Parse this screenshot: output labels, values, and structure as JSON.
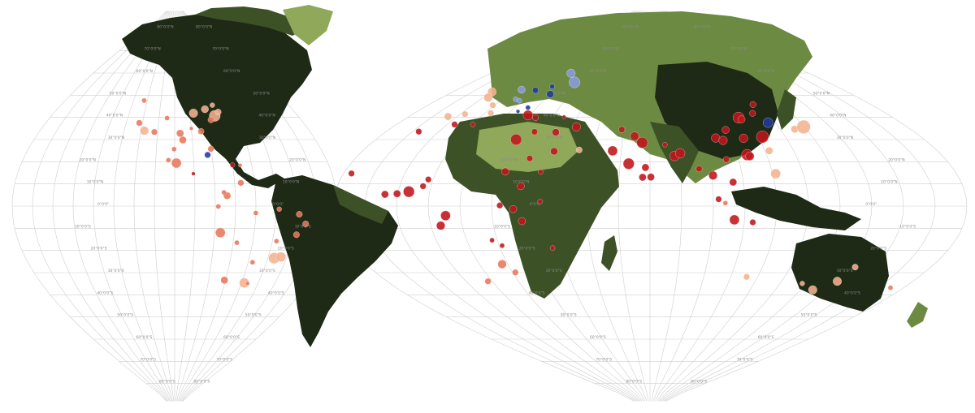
{
  "map": {
    "lat_labels": [
      "80°0'0\"N",
      "70°0'0\"N",
      "60°0'0\"N",
      "50°0'0\"N",
      "40°0'0\"N",
      "30°0'0\"N",
      "20°0'0\"N",
      "10°0'0\"N",
      "0°0'0\"",
      "10°0'0\"S",
      "20°0'0\"S",
      "30°0'0\"S",
      "40°0'0\"S",
      "50°0'0\"S",
      "60°0'0\"S",
      "70°0'0\"S",
      "80°0'0\"S"
    ]
  },
  "legend_colors": {
    "land_dark": "#1f2a16",
    "land_mid": "#3d5127",
    "land_light": "#6d8a42",
    "land_pale": "#8fa85a",
    "city_red": "#c0141a",
    "city_salmon": "#e8765a",
    "city_peach": "#f4b28f",
    "city_blue": "#1f3a9c",
    "city_lightblue": "#8a9be0"
  },
  "cities": [
    {
      "lon": -118,
      "lat": 34,
      "size": 7,
      "tone": "peach"
    },
    {
      "lon": -122,
      "lat": 37.5,
      "size": 5,
      "tone": "salmon"
    },
    {
      "lon": -122.3,
      "lat": 47.6,
      "size": 4,
      "tone": "salmon"
    },
    {
      "lon": -112,
      "lat": 33.4,
      "size": 5,
      "tone": "salmon"
    },
    {
      "lon": -104.9,
      "lat": 39.7,
      "size": 4,
      "tone": "salmon"
    },
    {
      "lon": -96.8,
      "lat": 32.8,
      "size": 6,
      "tone": "salmon"
    },
    {
      "lon": -95.4,
      "lat": 29.8,
      "size": 6,
      "tone": "salmon"
    },
    {
      "lon": -87.6,
      "lat": 41.9,
      "size": 7,
      "tone": "peach"
    },
    {
      "lon": -74,
      "lat": 40.7,
      "size": 9,
      "tone": "peach"
    },
    {
      "lon": -71,
      "lat": 42.4,
      "size": 5,
      "tone": "peach"
    },
    {
      "lon": -77,
      "lat": 38.9,
      "size": 5,
      "tone": "salmon"
    },
    {
      "lon": -84.4,
      "lat": 33.7,
      "size": 5,
      "tone": "salmon"
    },
    {
      "lon": -80.2,
      "lat": 25.8,
      "size": 5,
      "tone": "salmon"
    },
    {
      "lon": -79.4,
      "lat": 43.7,
      "size": 6,
      "tone": "peach"
    },
    {
      "lon": -73.6,
      "lat": 45.5,
      "size": 4,
      "tone": "peach"
    },
    {
      "lon": -90,
      "lat": 35,
      "size": 3,
      "tone": "salmon"
    },
    {
      "lon": -100.3,
      "lat": 25.7,
      "size": 4,
      "tone": "salmon"
    },
    {
      "lon": -99.1,
      "lat": 19.4,
      "size": 8,
      "tone": "salmon"
    },
    {
      "lon": -103.3,
      "lat": 20.7,
      "size": 4,
      "tone": "salmon"
    },
    {
      "lon": -90.5,
      "lat": 14.6,
      "size": 3,
      "tone": "red"
    },
    {
      "lon": -82.4,
      "lat": 23.1,
      "size": 5,
      "tone": "blue"
    },
    {
      "lon": -70,
      "lat": 18.5,
      "size": 4,
      "tone": "red"
    },
    {
      "lon": -66,
      "lat": 18.4,
      "size": 3,
      "tone": "salmon"
    },
    {
      "lon": -74.1,
      "lat": 4.7,
      "size": 6,
      "tone": "salmon"
    },
    {
      "lon": -75.6,
      "lat": 6.2,
      "size": 4,
      "tone": "salmon"
    },
    {
      "lon": -66.9,
      "lat": 10.5,
      "size": 5,
      "tone": "salmon"
    },
    {
      "lon": -78.5,
      "lat": -0.2,
      "size": 4,
      "tone": "salmon"
    },
    {
      "lon": -77,
      "lat": -12,
      "size": 8,
      "tone": "salmon"
    },
    {
      "lon": -68.1,
      "lat": -16.5,
      "size": 4,
      "tone": "salmon"
    },
    {
      "lon": -70.7,
      "lat": -33.4,
      "size": 6,
      "tone": "salmon"
    },
    {
      "lon": -58.4,
      "lat": -34.6,
      "size": 8,
      "tone": "peach"
    },
    {
      "lon": -56.2,
      "lat": -34.9,
      "size": 3,
      "tone": "salmon"
    },
    {
      "lon": -57.6,
      "lat": -25.3,
      "size": 4,
      "tone": "salmon"
    },
    {
      "lon": -46.6,
      "lat": -23.5,
      "size": 9,
      "tone": "peach"
    },
    {
      "lon": -43.2,
      "lat": -22.9,
      "size": 8,
      "tone": "peach"
    },
    {
      "lon": -47.9,
      "lat": -15.8,
      "size": 4,
      "tone": "salmon"
    },
    {
      "lon": -38.5,
      "lat": -12.9,
      "size": 5,
      "tone": "salmon"
    },
    {
      "lon": -34.9,
      "lat": -8,
      "size": 5,
      "tone": "salmon"
    },
    {
      "lon": -38.5,
      "lat": -3.7,
      "size": 5,
      "tone": "salmon"
    },
    {
      "lon": -48.5,
      "lat": -1.4,
      "size": 4,
      "tone": "salmon"
    },
    {
      "lon": -60,
      "lat": -3.1,
      "size": 4,
      "tone": "salmon"
    },
    {
      "lon": -0.1,
      "lat": 51.5,
      "size": 7,
      "tone": "peach"
    },
    {
      "lon": 2.35,
      "lat": 48.9,
      "size": 7,
      "tone": "peach"
    },
    {
      "lon": -3.7,
      "lat": 40.4,
      "size": 6,
      "tone": "peach"
    },
    {
      "lon": 2.2,
      "lat": 41.4,
      "size": 5,
      "tone": "peach"
    },
    {
      "lon": 12.5,
      "lat": 41.9,
      "size": 5,
      "tone": "peach"
    },
    {
      "lon": 9.2,
      "lat": 45.5,
      "size": 5,
      "tone": "peach"
    },
    {
      "lon": 13.4,
      "lat": 52.5,
      "size": 6,
      "tone": "lightblue"
    },
    {
      "lon": 16.4,
      "lat": 48.2,
      "size": 4,
      "tone": "lightblue"
    },
    {
      "lon": 21,
      "lat": 52.2,
      "size": 5,
      "tone": "blue"
    },
    {
      "lon": 30.5,
      "lat": 50.5,
      "size": 6,
      "tone": "blue"
    },
    {
      "lon": 37.6,
      "lat": 55.8,
      "size": 9,
      "tone": "lightblue"
    },
    {
      "lon": 30.3,
      "lat": 59.9,
      "size": 7,
      "tone": "lightblue"
    },
    {
      "lon": 27.6,
      "lat": 53.9,
      "size": 4,
      "tone": "blue"
    },
    {
      "lon": 26.1,
      "lat": 44.4,
      "size": 4,
      "tone": "blue"
    },
    {
      "lon": 23.3,
      "lat": 42.7,
      "size": 3,
      "tone": "blue"
    },
    {
      "lon": 19,
      "lat": 47.5,
      "size": 4,
      "tone": "lightblue"
    },
    {
      "lon": 28.98,
      "lat": 41,
      "size": 8,
      "tone": "red"
    },
    {
      "lon": 32.9,
      "lat": 39.9,
      "size": 5,
      "tone": "red"
    },
    {
      "lon": 44.5,
      "lat": 40.2,
      "size": 3,
      "tone": "red"
    },
    {
      "lon": 51.4,
      "lat": 35.7,
      "size": 7,
      "tone": "red"
    },
    {
      "lon": 44.4,
      "lat": 33.3,
      "size": 6,
      "tone": "red"
    },
    {
      "lon": 36.3,
      "lat": 33.5,
      "size": 5,
      "tone": "red"
    },
    {
      "lon": 31.2,
      "lat": 30,
      "size": 9,
      "tone": "red"
    },
    {
      "lon": 46.7,
      "lat": 24.7,
      "size": 6,
      "tone": "red"
    },
    {
      "lon": 39.2,
      "lat": 21.5,
      "size": 5,
      "tone": "red"
    },
    {
      "lon": 55.3,
      "lat": 25.3,
      "size": 5,
      "tone": "peach"
    },
    {
      "lon": 44.2,
      "lat": 15.4,
      "size": 4,
      "tone": "red"
    },
    {
      "lon": 69.2,
      "lat": 34.5,
      "size": 5,
      "tone": "red"
    },
    {
      "lon": 67,
      "lat": 24.9,
      "size": 8,
      "tone": "red"
    },
    {
      "lon": 74.3,
      "lat": 31.5,
      "size": 7,
      "tone": "red"
    },
    {
      "lon": 77.2,
      "lat": 28.6,
      "size": 9,
      "tone": "red"
    },
    {
      "lon": 72.9,
      "lat": 19.1,
      "size": 9,
      "tone": "red"
    },
    {
      "lon": 88.4,
      "lat": 22.6,
      "size": 8,
      "tone": "red"
    },
    {
      "lon": 80.3,
      "lat": 13.1,
      "size": 6,
      "tone": "red"
    },
    {
      "lon": 77.6,
      "lat": 13,
      "size": 6,
      "tone": "red"
    },
    {
      "lon": 78.5,
      "lat": 17.4,
      "size": 6,
      "tone": "red"
    },
    {
      "lon": 90.4,
      "lat": 23.8,
      "size": 8,
      "tone": "red"
    },
    {
      "lon": 85.3,
      "lat": 27.7,
      "size": 4,
      "tone": "red"
    },
    {
      "lon": 96.2,
      "lat": 16.8,
      "size": 5,
      "tone": "red"
    },
    {
      "lon": 100.5,
      "lat": 13.8,
      "size": 7,
      "tone": "red"
    },
    {
      "lon": 106.7,
      "lat": 10.8,
      "size": 6,
      "tone": "red"
    },
    {
      "lon": 105.8,
      "lat": 21,
      "size": 5,
      "tone": "red"
    },
    {
      "lon": 116.4,
      "lat": 39.9,
      "size": 9,
      "tone": "red"
    },
    {
      "lon": 121.5,
      "lat": 31.2,
      "size": 10,
      "tone": "red"
    },
    {
      "lon": 113.3,
      "lat": 23.1,
      "size": 9,
      "tone": "red"
    },
    {
      "lon": 114.1,
      "lat": 22.5,
      "size": 7,
      "tone": "red"
    },
    {
      "lon": 104.1,
      "lat": 30.7,
      "size": 7,
      "tone": "red"
    },
    {
      "lon": 106.5,
      "lat": 29.6,
      "size": 7,
      "tone": "red"
    },
    {
      "lon": 114.3,
      "lat": 30.6,
      "size": 7,
      "tone": "red"
    },
    {
      "lon": 117.2,
      "lat": 39.1,
      "size": 6,
      "tone": "red"
    },
    {
      "lon": 108.9,
      "lat": 34.3,
      "size": 6,
      "tone": "red"
    },
    {
      "lon": 123.4,
      "lat": 41.8,
      "size": 5,
      "tone": "red"
    },
    {
      "lon": 126.6,
      "lat": 45.8,
      "size": 5,
      "tone": "red"
    },
    {
      "lon": 126.98,
      "lat": 37.6,
      "size": 8,
      "tone": "blue"
    },
    {
      "lon": 135.5,
      "lat": 34.7,
      "size": 6,
      "tone": "peach"
    },
    {
      "lon": 139.7,
      "lat": 35.7,
      "size": 11,
      "tone": "peach"
    },
    {
      "lon": 121.5,
      "lat": 25,
      "size": 6,
      "tone": "peach"
    },
    {
      "lon": 121,
      "lat": 14.6,
      "size": 8,
      "tone": "peach"
    },
    {
      "lon": 101.7,
      "lat": 3.1,
      "size": 5,
      "tone": "red"
    },
    {
      "lon": 103.8,
      "lat": 1.35,
      "size": 4,
      "tone": "salmon"
    },
    {
      "lon": 106.8,
      "lat": -6.2,
      "size": 8,
      "tone": "red"
    },
    {
      "lon": 112.7,
      "lat": -7.3,
      "size": 5,
      "tone": "red"
    },
    {
      "lon": 151.2,
      "lat": -33.9,
      "size": 7,
      "tone": "peach"
    },
    {
      "lon": 145,
      "lat": -37.8,
      "size": 7,
      "tone": "peach"
    },
    {
      "lon": 153,
      "lat": -27.5,
      "size": 5,
      "tone": "peach"
    },
    {
      "lon": 115.9,
      "lat": -31.9,
      "size": 5,
      "tone": "peach"
    },
    {
      "lon": 138.6,
      "lat": -34.9,
      "size": 4,
      "tone": "peach"
    },
    {
      "lon": 174.8,
      "lat": -36.8,
      "size": 4,
      "tone": "salmon"
    },
    {
      "lon": 3.4,
      "lat": 6.5,
      "size": 9,
      "tone": "red"
    },
    {
      "lon": -0.2,
      "lat": 5.6,
      "size": 6,
      "tone": "red"
    },
    {
      "lon": -4,
      "lat": 5.3,
      "size": 6,
      "tone": "red"
    },
    {
      "lon": -17.4,
      "lat": 14.7,
      "size": 5,
      "tone": "red"
    },
    {
      "lon": -7.6,
      "lat": 33.6,
      "size": 5,
      "tone": "red"
    },
    {
      "lon": 3,
      "lat": 36.8,
      "size": 5,
      "tone": "red"
    },
    {
      "lon": 10.2,
      "lat": 36.8,
      "size": 4,
      "tone": "red"
    },
    {
      "lon": 7.5,
      "lat": 9,
      "size": 5,
      "tone": "red"
    },
    {
      "lon": 8.5,
      "lat": 12,
      "size": 5,
      "tone": "red"
    },
    {
      "lon": 15.3,
      "lat": -4.3,
      "size": 8,
      "tone": "red"
    },
    {
      "lon": 13.2,
      "lat": -8.8,
      "size": 7,
      "tone": "red"
    },
    {
      "lon": 32.6,
      "lat": 15.6,
      "size": 6,
      "tone": "red"
    },
    {
      "lon": 38.7,
      "lat": 9,
      "size": 6,
      "tone": "red"
    },
    {
      "lon": 36.8,
      "lat": -1.3,
      "size": 6,
      "tone": "red"
    },
    {
      "lon": 39.3,
      "lat": -6.8,
      "size": 6,
      "tone": "red"
    },
    {
      "lon": 32.6,
      "lat": 0.3,
      "size": 5,
      "tone": "red"
    },
    {
      "lon": 28.3,
      "lat": -15.4,
      "size": 4,
      "tone": "red"
    },
    {
      "lon": 31,
      "lat": -17.8,
      "size": 4,
      "tone": "red"
    },
    {
      "lon": 28,
      "lat": -26.2,
      "size": 7,
      "tone": "salmon"
    },
    {
      "lon": 18.4,
      "lat": -33.9,
      "size": 5,
      "tone": "salmon"
    },
    {
      "lon": 31,
      "lat": -29.9,
      "size": 5,
      "tone": "salmon"
    },
    {
      "lon": 47.5,
      "lat": -18.9,
      "size": 4,
      "tone": "red"
    },
    {
      "lon": 45.3,
      "lat": 2,
      "size": 4,
      "tone": "red"
    }
  ]
}
